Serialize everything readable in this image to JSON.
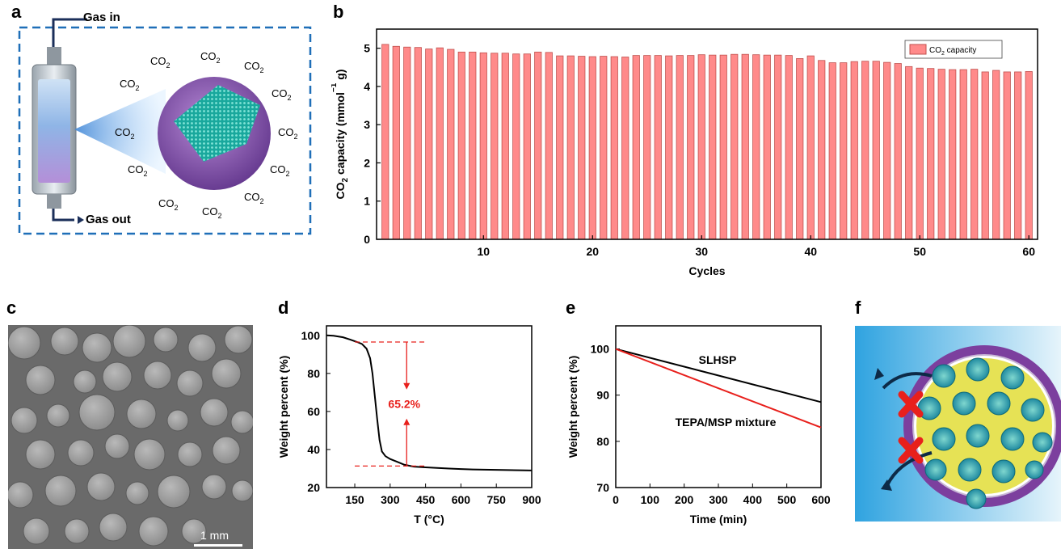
{
  "panels": {
    "a": "a",
    "b": "b",
    "c": "c",
    "d": "d",
    "e": "e",
    "f": "f"
  },
  "schematic_a": {
    "gas_in": "Gas in",
    "gas_out": "Gas out",
    "co2_label": "CO",
    "co2_sub": "2",
    "colors": {
      "border": "#1f6fb8",
      "shell": "#7b4fa0",
      "core": "#22b2a6"
    }
  },
  "sem_c": {
    "scale_bar": "1 mm"
  },
  "chart_data": [
    {
      "id": "b",
      "type": "bar",
      "x": [
        1,
        2,
        3,
        4,
        5,
        6,
        7,
        8,
        9,
        10,
        11,
        12,
        13,
        14,
        15,
        16,
        17,
        18,
        19,
        20,
        21,
        22,
        23,
        24,
        25,
        26,
        27,
        28,
        29,
        30,
        31,
        32,
        33,
        34,
        35,
        36,
        37,
        38,
        39,
        40,
        41,
        42,
        43,
        44,
        45,
        46,
        47,
        48,
        49,
        50,
        51,
        52,
        53,
        54,
        55,
        56,
        57,
        58,
        59,
        60
      ],
      "values": [
        5.1,
        5.05,
        5.03,
        5.02,
        4.98,
        5.01,
        4.97,
        4.9,
        4.9,
        4.88,
        4.87,
        4.87,
        4.85,
        4.85,
        4.9,
        4.89,
        4.8,
        4.8,
        4.79,
        4.78,
        4.79,
        4.78,
        4.77,
        4.81,
        4.81,
        4.81,
        4.8,
        4.81,
        4.81,
        4.83,
        4.82,
        4.82,
        4.84,
        4.84,
        4.83,
        4.82,
        4.82,
        4.81,
        4.73,
        4.8,
        4.68,
        4.62,
        4.62,
        4.65,
        4.66,
        4.66,
        4.63,
        4.6,
        4.52,
        4.48,
        4.47,
        4.45,
        4.44,
        4.44,
        4.45,
        4.38,
        4.42,
        4.38,
        4.38,
        4.39
      ],
      "xlabel": "Cycles",
      "ylabel_parts": [
        "CO",
        "2",
        " capacity (mmol",
        "−1",
        " g)"
      ],
      "legend": [
        "CO",
        "2",
        " capacity"
      ],
      "legend_position": "top-right",
      "xlim": [
        0.2,
        60.8
      ],
      "ylim": [
        0,
        5.5
      ],
      "xticks": [
        10,
        20,
        30,
        40,
        50,
        60
      ],
      "yticks": [
        0,
        1,
        2,
        3,
        4,
        5
      ],
      "bar_color": "#ff8a8a",
      "edge_color": "#c0504d"
    },
    {
      "id": "d",
      "type": "line",
      "x": [
        30,
        60,
        100,
        130,
        160,
        180,
        200,
        215,
        225,
        235,
        245,
        255,
        265,
        280,
        300,
        330,
        360,
        400,
        450,
        500,
        550,
        600,
        650,
        700,
        750,
        800,
        850,
        900
      ],
      "y": [
        100,
        99.8,
        99,
        97.8,
        96.5,
        95.5,
        93,
        88,
        80,
        68,
        56,
        45,
        39,
        36.5,
        35,
        33.5,
        32,
        31,
        30.6,
        30.3,
        30,
        29.7,
        29.5,
        29.4,
        29.3,
        29.2,
        29.1,
        29.0
      ],
      "xlabel": "T (°C)",
      "ylabel": "Weight percent (%)",
      "xlim": [
        30,
        900
      ],
      "ylim": [
        20,
        105
      ],
      "xticks": [
        150,
        300,
        450,
        600,
        750,
        900
      ],
      "yticks": [
        20,
        40,
        60,
        80,
        100
      ],
      "annotation": "65.2%",
      "guide_levels": [
        96.5,
        31.3
      ],
      "guide_x": [
        150,
        450
      ],
      "arrow_x": 370,
      "line_color": "#000000",
      "annotation_color": "#e8201c"
    },
    {
      "id": "e",
      "type": "line",
      "series": [
        {
          "name": "SLHSP",
          "x": [
            0,
            600
          ],
          "y": [
            100,
            88.5
          ],
          "color": "#000000"
        },
        {
          "name": "TEPA/MSP mixture",
          "x": [
            0,
            600
          ],
          "y": [
            100,
            83
          ],
          "color": "#e8201c"
        }
      ],
      "xlabel": "Time (min)",
      "ylabel": "Weight percent (%)",
      "xlim": [
        0,
        600
      ],
      "ylim": [
        70,
        105
      ],
      "xticks": [
        0,
        100,
        200,
        300,
        400,
        500,
        600
      ],
      "yticks": [
        70,
        80,
        90,
        100
      ]
    }
  ]
}
